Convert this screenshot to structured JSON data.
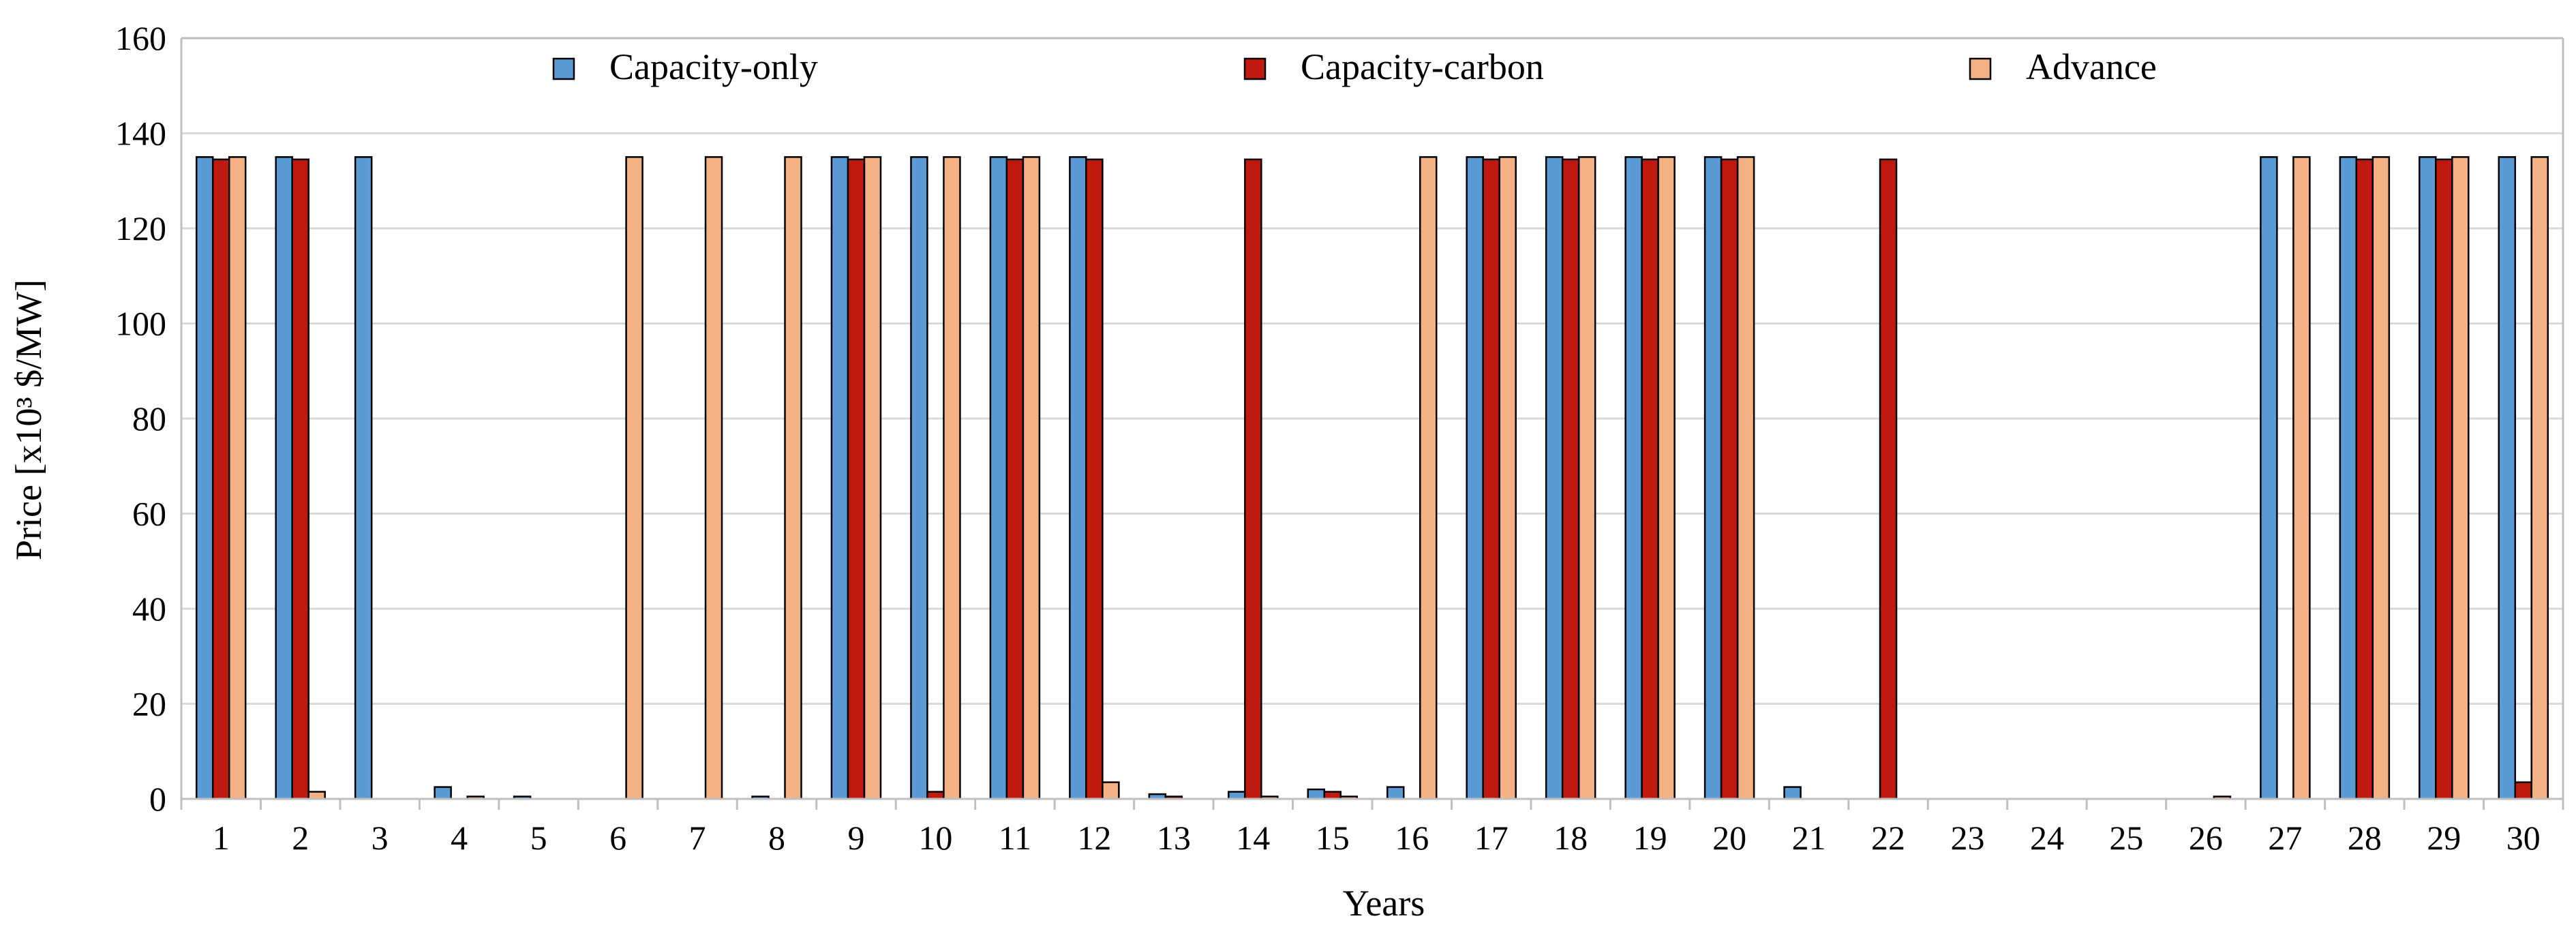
{
  "chart_data": {
    "type": "bar",
    "title": "",
    "xlabel": "Years",
    "ylabel": "Price [x10³ $/MW]",
    "ylim": [
      0,
      160
    ],
    "yticks": [
      0,
      20,
      40,
      60,
      80,
      100,
      120,
      140,
      160
    ],
    "grid": true,
    "legend_position": "top-center",
    "categories": [
      "1",
      "2",
      "3",
      "4",
      "5",
      "6",
      "7",
      "8",
      "9",
      "10",
      "11",
      "12",
      "13",
      "14",
      "15",
      "16",
      "17",
      "18",
      "19",
      "20",
      "21",
      "22",
      "23",
      "24",
      "25",
      "26",
      "27",
      "28",
      "29",
      "30"
    ],
    "series": [
      {
        "name": "Capacity-only",
        "color": "#5b9bd5",
        "values": [
          135,
          135,
          135,
          2.5,
          0.5,
          0,
          0,
          0.5,
          135,
          135,
          135,
          135,
          1,
          1.5,
          2,
          2.5,
          135,
          135,
          135,
          135,
          2.5,
          0,
          0,
          0,
          0,
          0,
          135,
          135,
          135,
          135
        ]
      },
      {
        "name": "Capacity-carbon",
        "color": "#c0190f",
        "values": [
          134.5,
          134.5,
          0,
          0,
          0,
          0,
          0,
          0,
          134.5,
          1.5,
          134.5,
          134.5,
          0.5,
          134.5,
          1.5,
          0,
          134.5,
          134.5,
          134.5,
          134.5,
          0,
          134.5,
          0,
          0,
          0,
          0,
          0,
          134.5,
          134.5,
          3.5
        ]
      },
      {
        "name": "Advance",
        "color": "#f4b183",
        "values": [
          135,
          1.5,
          0,
          0.5,
          0,
          135,
          135,
          135,
          135,
          135,
          135,
          3.5,
          0,
          0.5,
          0.5,
          135,
          135,
          135,
          135,
          135,
          0,
          0,
          0,
          0,
          0,
          0.5,
          135,
          135,
          135,
          135
        ]
      }
    ]
  }
}
